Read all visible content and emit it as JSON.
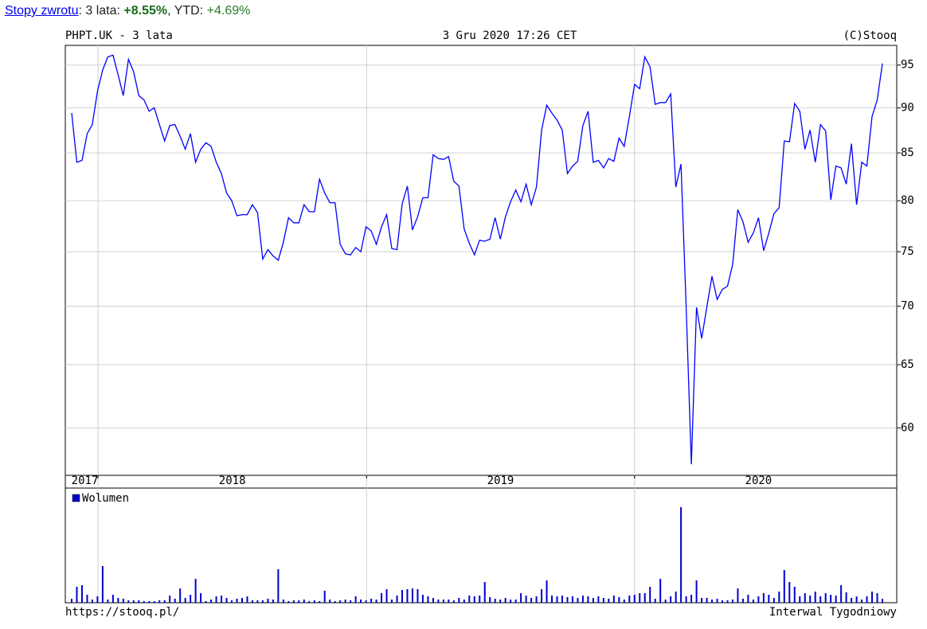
{
  "header": {
    "link": "Stopy zwrotu",
    "period_label": ": 3 lata: ",
    "period_return": "+8.55%",
    "ytd_label": ", YTD: ",
    "ytd_return": "+4.69%"
  },
  "chart_data": [
    {
      "type": "line",
      "title": "PHPT.UK - 3 lata",
      "subtitle": "3 Gru 2020 17:26 CET",
      "credit": "(C)Stooq",
      "color": "#0000ff",
      "log": true,
      "grid": true,
      "ylim": [
        56.5,
        97.4
      ],
      "yticks": [
        60,
        65,
        70,
        75,
        80,
        85,
        90,
        95
      ],
      "xlim": [
        0,
        157
      ],
      "xticks": [
        {
          "value": 0,
          "label": "2017"
        },
        {
          "value": 5.1,
          "label": "2018"
        },
        {
          "value": 57.1,
          "label": "2019"
        },
        {
          "value": 109.0,
          "label": "2020"
        }
      ],
      "values": [
        89.4,
        84,
        84.2,
        87.1,
        88.1,
        91.9,
        94.4,
        96,
        96.2,
        93.8,
        91.4,
        95.7,
        94.2,
        91.4,
        90.9,
        89.6,
        90,
        88.1,
        86.3,
        88,
        88.1,
        86.8,
        85.4,
        87.1,
        84,
        85.4,
        86.1,
        85.7,
        84,
        82.8,
        80.8,
        80,
        78.5,
        78.6,
        78.6,
        79.6,
        78.8,
        74.3,
        75.2,
        74.6,
        74.2,
        75.9,
        78.3,
        77.8,
        77.8,
        79.6,
        78.9,
        78.9,
        82.2,
        80.8,
        79.8,
        79.8,
        75.7,
        74.8,
        74.7,
        75.4,
        75,
        77.4,
        77,
        75.7,
        77.4,
        78.6,
        75.3,
        75.2,
        79.7,
        81.5,
        77.1,
        78.4,
        80.3,
        80.3,
        84.8,
        84.4,
        84.3,
        84.6,
        82,
        81.5,
        77.2,
        75.8,
        74.7,
        76.1,
        76,
        76.2,
        78.3,
        76.2,
        78.4,
        79.9,
        81.1,
        79.9,
        81.7,
        79.6,
        81.4,
        87.5,
        90.3,
        89.4,
        88.6,
        87.5,
        82.8,
        83.6,
        84.1,
        88,
        89.6,
        84,
        84.2,
        83.4,
        84.4,
        84.1,
        86.6,
        85.7,
        89,
        92.7,
        92.2,
        96,
        94.8,
        90.4,
        90.6,
        90.6,
        91.6,
        81.4,
        83.8,
        69.9,
        57.3,
        69.9,
        67.2,
        69.9,
        72.7,
        70.6,
        71.5,
        71.8,
        73.8,
        79.1,
        77.9,
        75.9,
        76.8,
        78.3,
        75.1,
        76.8,
        78.7,
        79.3,
        86.3,
        86.2,
        90.5,
        89.6,
        85.4,
        87.5,
        84,
        88.1,
        87.4,
        80.1,
        83.6,
        83.4,
        81.7,
        86,
        79.6,
        84,
        83.6,
        89,
        90.9,
        95.2
      ]
    },
    {
      "type": "bar",
      "source": "https://stooq.pl/",
      "note": "Interwal Tygodniowy",
      "ylim": [
        0,
        144
      ],
      "xlim": [
        0,
        157
      ],
      "series": [
        {
          "name": "Wolumen",
          "color": "#0000cc",
          "values": [
            5,
            20,
            22,
            10,
            4,
            8,
            46,
            4,
            10,
            6,
            5,
            3,
            3,
            3,
            2,
            2,
            2,
            3,
            3,
            9,
            5,
            18,
            6,
            10,
            30,
            12,
            2,
            4,
            8,
            9,
            6,
            3,
            5,
            6,
            8,
            3,
            3,
            3,
            5,
            4,
            42,
            4,
            2,
            3,
            3,
            4,
            2,
            3,
            2,
            15,
            4,
            2,
            3,
            4,
            3,
            8,
            4,
            3,
            5,
            4,
            12,
            17,
            4,
            9,
            16,
            17,
            18,
            17,
            10,
            8,
            6,
            4,
            4,
            4,
            3,
            6,
            4,
            9,
            8,
            9,
            26,
            7,
            5,
            4,
            6,
            4,
            4,
            12,
            9,
            6,
            8,
            17,
            28,
            9,
            8,
            9,
            7,
            8,
            6,
            9,
            8,
            6,
            8,
            6,
            5,
            9,
            7,
            4,
            9,
            10,
            12,
            12,
            20,
            5,
            30,
            4,
            8,
            14,
            120,
            8,
            10,
            28,
            6,
            6,
            4,
            5,
            3,
            3,
            4,
            18,
            5,
            10,
            4,
            8,
            12,
            10,
            6,
            14,
            41,
            26,
            20,
            8,
            12,
            9,
            14,
            8,
            12,
            10,
            9,
            22,
            13,
            6,
            8,
            4,
            8,
            14,
            12,
            5
          ]
        }
      ]
    }
  ]
}
